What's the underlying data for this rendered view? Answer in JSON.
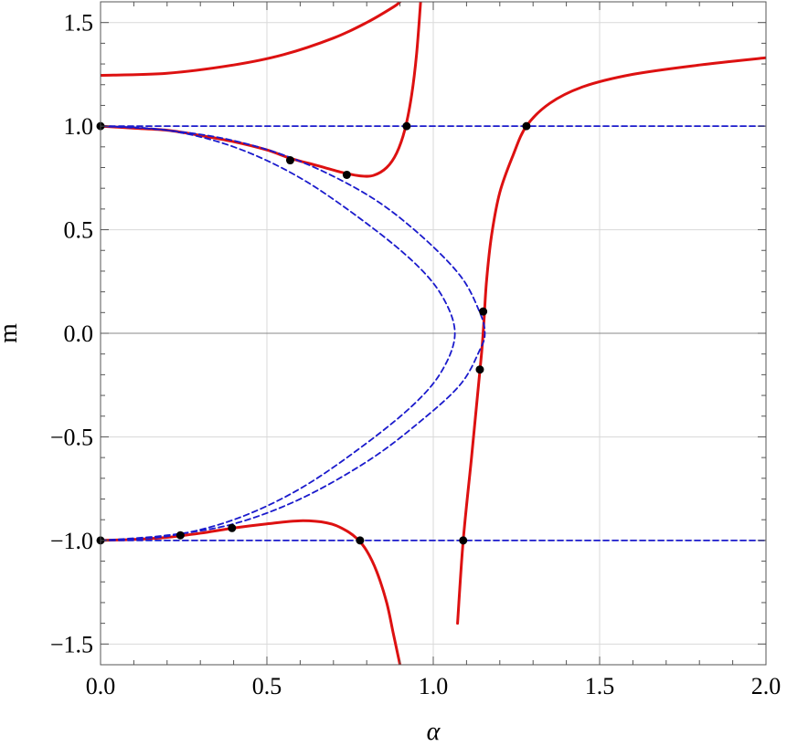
{
  "chart_data": {
    "type": "line",
    "title": "",
    "xlabel": "α",
    "ylabel": "m",
    "xlim": [
      0,
      2
    ],
    "ylim": [
      -1.6,
      1.6
    ],
    "grid": true,
    "legend": "none",
    "x_ticks": [
      {
        "value": 0,
        "label": "0.0"
      },
      {
        "value": 0.5,
        "label": "0.5"
      },
      {
        "value": 1,
        "label": "1.0"
      },
      {
        "value": 1.5,
        "label": "1.5"
      },
      {
        "value": 2,
        "label": "2.0"
      }
    ],
    "y_ticks": [
      {
        "value": -1.5,
        "label": "−1.5"
      },
      {
        "value": -1,
        "label": "−1.0"
      },
      {
        "value": -0.5,
        "label": "−0.5"
      },
      {
        "value": 0,
        "label": "0.0"
      },
      {
        "value": 0.5,
        "label": "0.5"
      },
      {
        "value": 1,
        "label": "1.0"
      },
      {
        "value": 1.5,
        "label": "1.5"
      }
    ],
    "colors": {
      "solid": "#dd1111",
      "dashed": "#1a1acc",
      "points": "#000000",
      "grid": "#d9d9d9",
      "zero_line": "#888888"
    },
    "series": [
      {
        "style": "solid",
        "points": [
          [
            0,
            1.245
          ],
          [
            0.2,
            1.255
          ],
          [
            0.4,
            1.295
          ],
          [
            0.55,
            1.345
          ],
          [
            0.7,
            1.425
          ],
          [
            0.8,
            1.5
          ],
          [
            0.88,
            1.575
          ],
          [
            0.9,
            1.6
          ]
        ]
      },
      {
        "style": "solid",
        "points": [
          [
            0,
            1.0
          ],
          [
            0.1,
            0.99
          ],
          [
            0.2,
            0.98
          ],
          [
            0.3,
            0.955
          ],
          [
            0.4,
            0.925
          ],
          [
            0.5,
            0.885
          ],
          [
            0.57,
            0.845
          ],
          [
            0.65,
            0.81
          ],
          [
            0.73,
            0.775
          ],
          [
            0.78,
            0.76
          ],
          [
            0.82,
            0.762
          ],
          [
            0.86,
            0.8
          ],
          [
            0.89,
            0.87
          ],
          [
            0.915,
            0.985
          ],
          [
            0.935,
            1.15
          ],
          [
            0.95,
            1.35
          ],
          [
            0.962,
            1.6
          ]
        ]
      },
      {
        "style": "solid",
        "points": [
          [
            1.073,
            -1.4
          ],
          [
            1.09,
            -1.0
          ],
          [
            1.115,
            -0.6
          ],
          [
            1.133,
            -0.3
          ],
          [
            1.145,
            -0.1
          ],
          [
            1.152,
            0.05
          ],
          [
            1.16,
            0.25
          ],
          [
            1.175,
            0.47
          ],
          [
            1.2,
            0.68
          ],
          [
            1.24,
            0.86
          ],
          [
            1.28,
            1.0
          ],
          [
            1.35,
            1.11
          ],
          [
            1.45,
            1.19
          ],
          [
            1.6,
            1.25
          ],
          [
            1.8,
            1.295
          ],
          [
            2.0,
            1.33
          ]
        ]
      },
      {
        "style": "solid",
        "points": [
          [
            0,
            -1.0
          ],
          [
            0.1,
            -0.995
          ],
          [
            0.2,
            -0.985
          ],
          [
            0.3,
            -0.965
          ],
          [
            0.4,
            -0.94
          ],
          [
            0.5,
            -0.92
          ],
          [
            0.6,
            -0.905
          ],
          [
            0.68,
            -0.915
          ],
          [
            0.73,
            -0.945
          ],
          [
            0.77,
            -0.99
          ],
          [
            0.8,
            -1.05
          ],
          [
            0.83,
            -1.15
          ],
          [
            0.86,
            -1.3
          ],
          [
            0.88,
            -1.45
          ],
          [
            0.9,
            -1.6
          ]
        ]
      },
      {
        "style": "dashed",
        "points": [
          [
            0,
            -1.0
          ],
          [
            0.2,
            -0.98
          ],
          [
            0.4,
            -0.9
          ],
          [
            0.6,
            -0.75
          ],
          [
            0.8,
            -0.53
          ],
          [
            0.95,
            -0.33
          ],
          [
            1.03,
            -0.17
          ],
          [
            1.065,
            0.0
          ],
          [
            1.03,
            0.17
          ],
          [
            0.95,
            0.33
          ],
          [
            0.8,
            0.53
          ],
          [
            0.6,
            0.75
          ],
          [
            0.4,
            0.9
          ],
          [
            0.2,
            0.98
          ],
          [
            0,
            1.0
          ]
        ]
      },
      {
        "style": "dashed",
        "points": [
          [
            0,
            -1.0
          ],
          [
            0.2,
            -0.975
          ],
          [
            0.4,
            -0.92
          ],
          [
            0.6,
            -0.8
          ],
          [
            0.8,
            -0.62
          ],
          [
            0.95,
            -0.44
          ],
          [
            1.08,
            -0.25
          ],
          [
            1.14,
            -0.08
          ],
          [
            1.155,
            0.0
          ],
          [
            1.14,
            0.1
          ],
          [
            1.08,
            0.28
          ],
          [
            0.95,
            0.49
          ],
          [
            0.8,
            0.67
          ],
          [
            0.6,
            0.83
          ],
          [
            0.4,
            0.93
          ],
          [
            0.2,
            0.98
          ],
          [
            0,
            1.0
          ]
        ]
      },
      {
        "style": "dashed",
        "points": [
          [
            0,
            1.0
          ],
          [
            2.0,
            1.0
          ]
        ]
      },
      {
        "style": "dashed",
        "points": [
          [
            0,
            -1.0
          ],
          [
            2.0,
            -1.0
          ]
        ]
      }
    ],
    "markers": [
      [
        0,
        1.0
      ],
      [
        0.57,
        0.835
      ],
      [
        0.74,
        0.765
      ],
      [
        0.92,
        1.0
      ],
      [
        1.28,
        1.0
      ],
      [
        1.15,
        0.105
      ],
      [
        1.14,
        -0.175
      ],
      [
        0,
        -1.0
      ],
      [
        0.24,
        -0.975
      ],
      [
        0.395,
        -0.94
      ],
      [
        0.78,
        -1.0
      ],
      [
        1.09,
        -1.0
      ]
    ]
  }
}
